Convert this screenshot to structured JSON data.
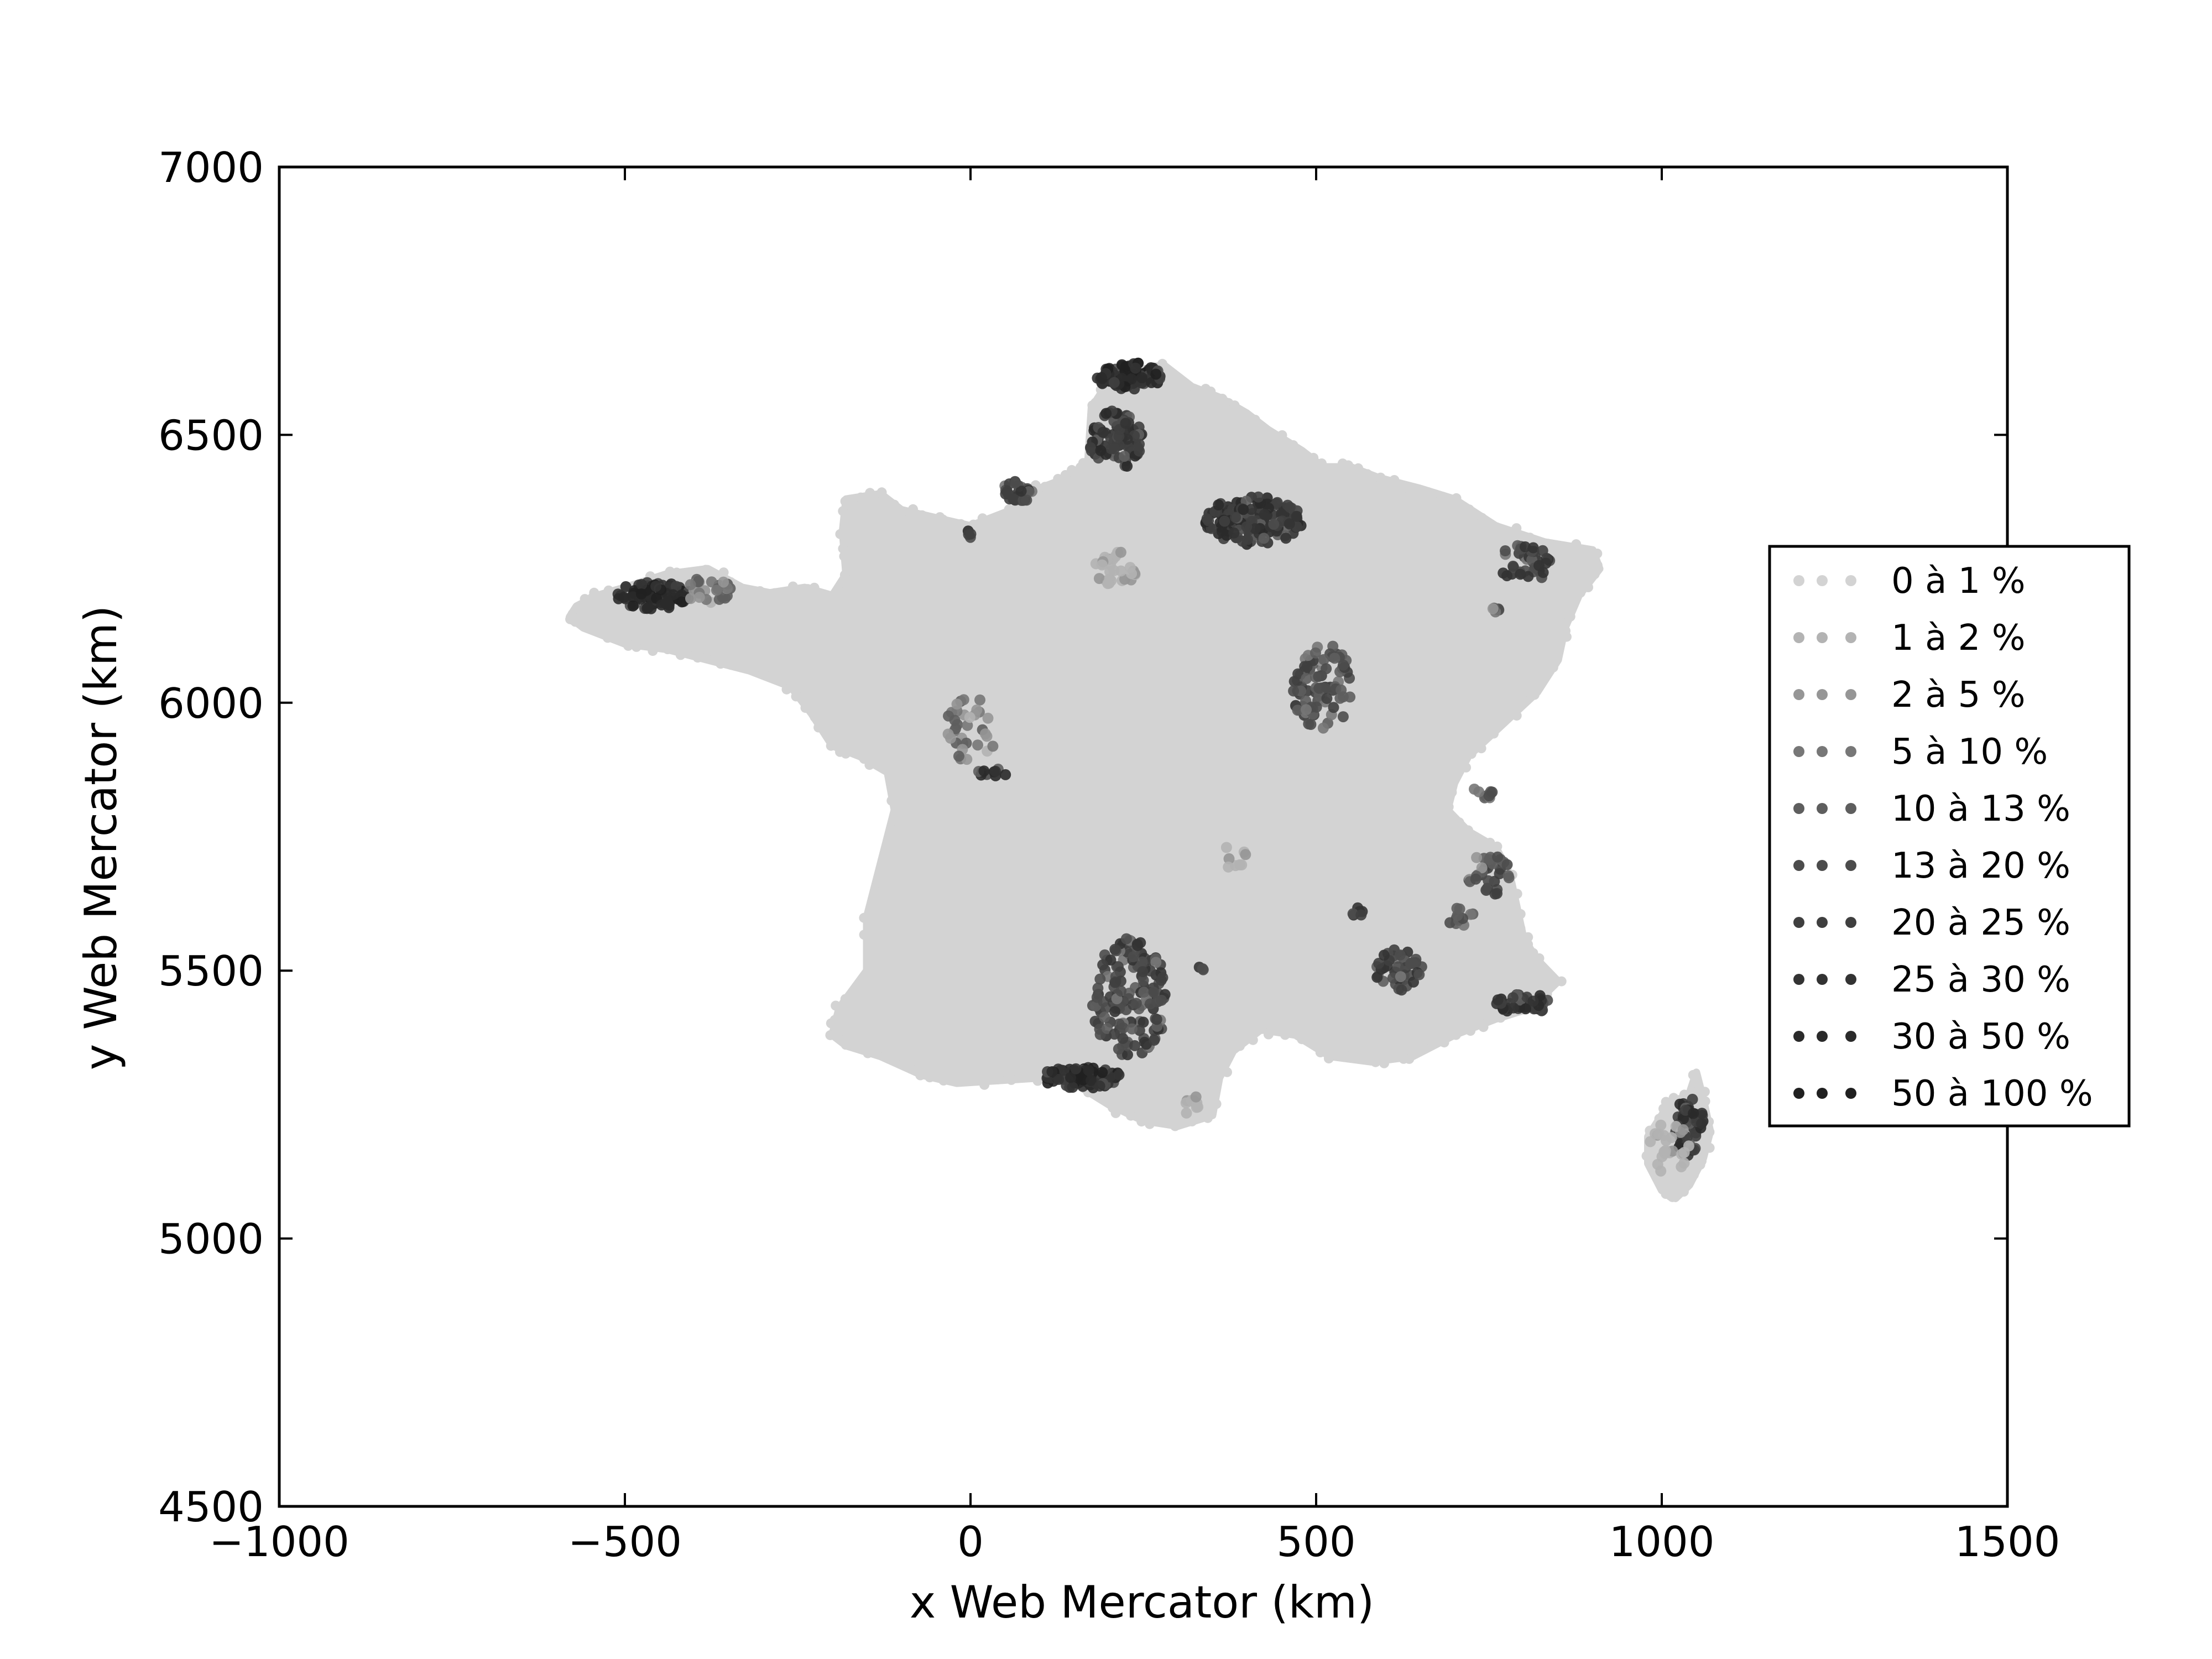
{
  "chart_data": {
    "type": "scatter",
    "title": "",
    "xlabel": "x Web Mercator (km)",
    "ylabel": "y Web Mercator (km)",
    "xlim": [
      -1000,
      1500
    ],
    "ylim": [
      4500,
      7000
    ],
    "xticks": [
      -1000,
      -500,
      0,
      500,
      1000,
      1500
    ],
    "yticks": [
      4500,
      5000,
      5500,
      6000,
      6500,
      7000
    ],
    "grid": false,
    "legend_position": "right",
    "categories": [
      "0 à 1 %",
      "1 à 2 %",
      "2 à 5 %",
      "5 à 10 %",
      "10 à 13 %",
      "13 à 20 %",
      "20 à 25 %",
      "25 à 30 %",
      "30 à 50 %",
      "50 à 100 %"
    ],
    "category_colors": [
      "#d3d3d3",
      "#b3b3b3",
      "#969696",
      "#777777",
      "#5e5e5e",
      "#4c4c4c",
      "#3f3f3f",
      "#333333",
      "#2a2a2a",
      "#202020"
    ],
    "france_outline": [
      [
        -570,
        6180
      ],
      [
        -540,
        6200
      ],
      [
        -500,
        6215
      ],
      [
        -440,
        6240
      ],
      [
        -380,
        6250
      ],
      [
        -330,
        6215
      ],
      [
        -290,
        6205
      ],
      [
        -240,
        6215
      ],
      [
        -200,
        6200
      ],
      [
        -180,
        6240
      ],
      [
        -185,
        6320
      ],
      [
        -180,
        6380
      ],
      [
        -130,
        6390
      ],
      [
        -100,
        6360
      ],
      [
        -50,
        6345
      ],
      [
        0,
        6330
      ],
      [
        60,
        6360
      ],
      [
        100,
        6400
      ],
      [
        140,
        6420
      ],
      [
        170,
        6450
      ],
      [
        175,
        6550
      ],
      [
        200,
        6600
      ],
      [
        240,
        6620
      ],
      [
        280,
        6630
      ],
      [
        320,
        6590
      ],
      [
        360,
        6570
      ],
      [
        400,
        6540
      ],
      [
        430,
        6510
      ],
      [
        480,
        6470
      ],
      [
        510,
        6440
      ],
      [
        550,
        6440
      ],
      [
        590,
        6420
      ],
      [
        650,
        6400
      ],
      [
        700,
        6380
      ],
      [
        760,
        6330
      ],
      [
        830,
        6300
      ],
      [
        900,
        6285
      ],
      [
        910,
        6250
      ],
      [
        880,
        6200
      ],
      [
        860,
        6140
      ],
      [
        850,
        6080
      ],
      [
        820,
        6020
      ],
      [
        770,
        5960
      ],
      [
        720,
        5900
      ],
      [
        700,
        5850
      ],
      [
        690,
        5800
      ],
      [
        720,
        5760
      ],
      [
        760,
        5730
      ],
      [
        780,
        5680
      ],
      [
        790,
        5620
      ],
      [
        800,
        5560
      ],
      [
        820,
        5520
      ],
      [
        850,
        5480
      ],
      [
        810,
        5430
      ],
      [
        760,
        5410
      ],
      [
        700,
        5380
      ],
      [
        640,
        5340
      ],
      [
        580,
        5330
      ],
      [
        520,
        5340
      ],
      [
        470,
        5380
      ],
      [
        420,
        5390
      ],
      [
        380,
        5350
      ],
      [
        360,
        5300
      ],
      [
        350,
        5230
      ],
      [
        300,
        5210
      ],
      [
        250,
        5220
      ],
      [
        200,
        5250
      ],
      [
        150,
        5290
      ],
      [
        100,
        5300
      ],
      [
        40,
        5295
      ],
      [
        -20,
        5290
      ],
      [
        -70,
        5305
      ],
      [
        -130,
        5340
      ],
      [
        -180,
        5360
      ],
      [
        -200,
        5380
      ],
      [
        -190,
        5430
      ],
      [
        -150,
        5500
      ],
      [
        -150,
        5600
      ],
      [
        -130,
        5700
      ],
      [
        -110,
        5800
      ],
      [
        -120,
        5870
      ],
      [
        -160,
        5900
      ],
      [
        -200,
        5920
      ],
      [
        -230,
        5980
      ],
      [
        -260,
        6030
      ],
      [
        -320,
        6060
      ],
      [
        -380,
        6080
      ],
      [
        -440,
        6100
      ],
      [
        -500,
        6110
      ],
      [
        -560,
        6140
      ],
      [
        -580,
        6160
      ]
    ],
    "corsica_outline": [
      [
        1010,
        5250
      ],
      [
        1040,
        5270
      ],
      [
        1050,
        5310
      ],
      [
        1060,
        5260
      ],
      [
        1070,
        5200
      ],
      [
        1060,
        5150
      ],
      [
        1040,
        5100
      ],
      [
        1020,
        5075
      ],
      [
        1000,
        5090
      ],
      [
        980,
        5140
      ],
      [
        980,
        5190
      ],
      [
        1000,
        5230
      ]
    ],
    "clusters": [
      {
        "x": 230,
        "y": 6610,
        "rx": 50,
        "ry": 25,
        "level": 9,
        "count": 90
      },
      {
        "x": 210,
        "y": 6490,
        "rx": 40,
        "ry": 55,
        "level": 8,
        "count": 90
      },
      {
        "x": 70,
        "y": 6395,
        "rx": 25,
        "ry": 20,
        "level": 7,
        "count": 35
      },
      {
        "x": 0,
        "y": 6315,
        "rx": 5,
        "ry": 8,
        "level": 8,
        "count": 4
      },
      {
        "x": -460,
        "y": 6200,
        "rx": 55,
        "ry": 25,
        "level": 9,
        "count": 90
      },
      {
        "x": -380,
        "y": 6210,
        "rx": 35,
        "ry": 25,
        "level": 4,
        "count": 30
      },
      {
        "x": 410,
        "y": 6340,
        "rx": 70,
        "ry": 45,
        "level": 8,
        "count": 140
      },
      {
        "x": 210,
        "y": 6250,
        "rx": 30,
        "ry": 35,
        "level": 2,
        "count": 30
      },
      {
        "x": 510,
        "y": 6030,
        "rx": 45,
        "ry": 80,
        "level": 6,
        "count": 90
      },
      {
        "x": 800,
        "y": 6260,
        "rx": 40,
        "ry": 35,
        "level": 7,
        "count": 40
      },
      {
        "x": 760,
        "y": 6170,
        "rx": 10,
        "ry": 10,
        "level": 5,
        "count": 6
      },
      {
        "x": 0,
        "y": 5950,
        "rx": 40,
        "ry": 60,
        "level": 4,
        "count": 35
      },
      {
        "x": 30,
        "y": 5870,
        "rx": 25,
        "ry": 8,
        "level": 8,
        "count": 10
      },
      {
        "x": 230,
        "y": 5450,
        "rx": 55,
        "ry": 110,
        "level": 7,
        "count": 150
      },
      {
        "x": 160,
        "y": 5300,
        "rx": 60,
        "ry": 20,
        "level": 9,
        "count": 90
      },
      {
        "x": 620,
        "y": 5500,
        "rx": 35,
        "ry": 40,
        "level": 7,
        "count": 45
      },
      {
        "x": 560,
        "y": 5610,
        "rx": 10,
        "ry": 8,
        "level": 8,
        "count": 6
      },
      {
        "x": 800,
        "y": 5440,
        "rx": 40,
        "ry": 20,
        "level": 8,
        "count": 45
      },
      {
        "x": 750,
        "y": 5680,
        "rx": 30,
        "ry": 40,
        "level": 6,
        "count": 35
      },
      {
        "x": 740,
        "y": 5830,
        "rx": 15,
        "ry": 15,
        "level": 5,
        "count": 10
      },
      {
        "x": 710,
        "y": 5600,
        "rx": 20,
        "ry": 20,
        "level": 6,
        "count": 12
      },
      {
        "x": 1040,
        "y": 5210,
        "rx": 20,
        "ry": 60,
        "level": 8,
        "count": 50
      },
      {
        "x": 1010,
        "y": 5170,
        "rx": 30,
        "ry": 50,
        "level": 2,
        "count": 25
      },
      {
        "x": 380,
        "y": 5720,
        "rx": 20,
        "ry": 30,
        "level": 2,
        "count": 8
      },
      {
        "x": 330,
        "y": 5500,
        "rx": 8,
        "ry": 8,
        "level": 7,
        "count": 3
      },
      {
        "x": 320,
        "y": 5250,
        "rx": 15,
        "ry": 20,
        "level": 2,
        "count": 10
      }
    ]
  }
}
